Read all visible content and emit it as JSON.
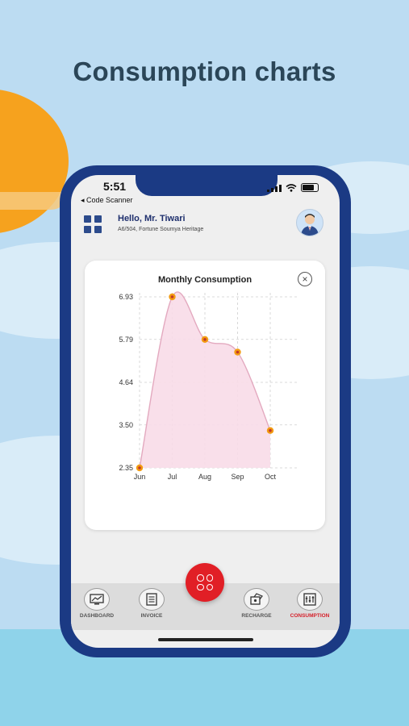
{
  "headline": "Consumption charts",
  "status": {
    "time": "5:51"
  },
  "back_link": "◂ Code Scanner",
  "header": {
    "greeting": "Hello, Mr. Tiwari",
    "address": "A6/504, Fortune Soumya Heritage"
  },
  "card": {
    "close_glyph": "×"
  },
  "chart_data": {
    "type": "area",
    "title": "Monthly Consumption",
    "categories": [
      "Jun",
      "Jul",
      "Aug",
      "Sep",
      "Oct"
    ],
    "values": [
      2.35,
      6.93,
      5.79,
      5.45,
      3.35
    ],
    "y_ticks": [
      "6.93",
      "5.79",
      "4.64",
      "3.50",
      "2.35"
    ],
    "ylim": [
      2.35,
      6.93
    ],
    "grid": true,
    "line_color": "#e3a9bf",
    "fill_color": "#f8dce8",
    "marker_color": "#f39c12",
    "marker_center": "#c0392b"
  },
  "nav": {
    "items": [
      {
        "label": "DASHBOARD",
        "icon": "dashboard-icon"
      },
      {
        "label": "INVOICE",
        "icon": "invoice-icon"
      },
      {
        "label": "RECHARGE",
        "icon": "recharge-icon"
      },
      {
        "label": "CONSUMPTION",
        "icon": "consumption-icon"
      }
    ],
    "active": "CONSUMPTION",
    "fab_icon": "grid-menu-icon"
  },
  "colors": {
    "phone_frame": "#1b3a84",
    "accent_red": "#e11f26",
    "headline": "#2b4658"
  }
}
